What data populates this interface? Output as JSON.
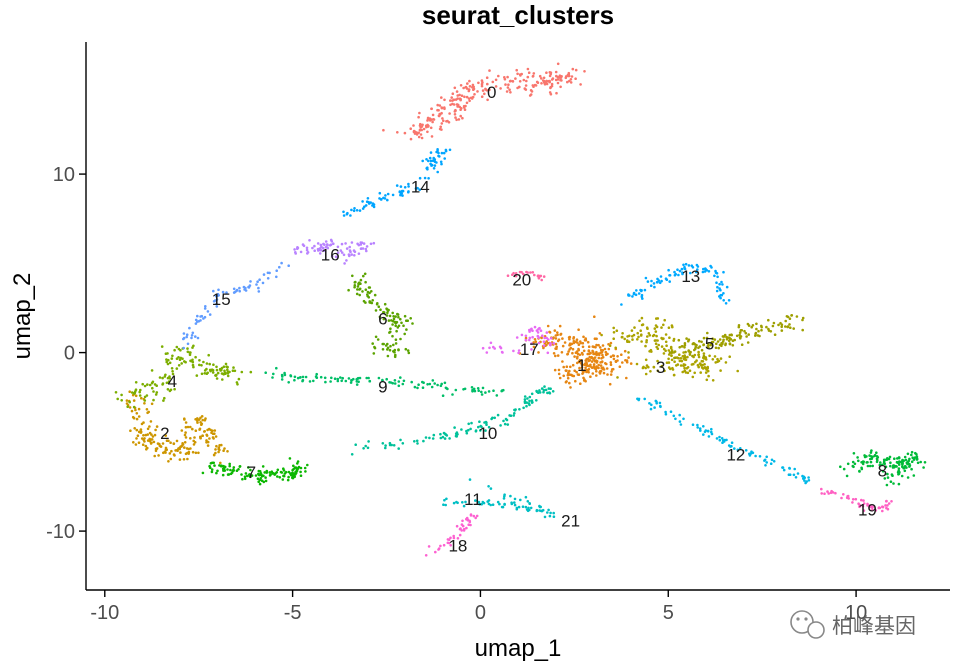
{
  "chart_data": {
    "type": "scatter",
    "title": "seurat_clusters",
    "xlabel": "umap_1",
    "ylabel": "umap_2",
    "xlim": [
      -10.5,
      12.5
    ],
    "ylim": [
      -13.3,
      17.4
    ],
    "xticks": [
      -10,
      -5,
      0,
      5,
      10
    ],
    "yticks": [
      -10,
      0,
      10
    ],
    "grid": false,
    "legend": "none",
    "clusters": [
      {
        "name": "0",
        "color": "#F8766D",
        "label_pos": [
          0.3,
          14.6
        ],
        "path": [
          [
            -1.8,
            12.2
          ],
          [
            -1.0,
            13.2
          ],
          [
            -0.5,
            14.4
          ],
          [
            0.5,
            15.1
          ],
          [
            1.8,
            15.2
          ],
          [
            2.3,
            15.6
          ]
        ],
        "spread": 0.45,
        "count": 260
      },
      {
        "name": "1",
        "color": "#E68613",
        "label_pos": [
          2.7,
          -0.7
        ],
        "path": [
          [
            1.5,
            0.4
          ],
          [
            2.5,
            0.8
          ],
          [
            3.2,
            -0.2
          ],
          [
            2.4,
            -1.3
          ],
          [
            3.8,
            -0.4
          ]
        ],
        "spread": 0.6,
        "count": 280
      },
      {
        "name": "2",
        "color": "#CD9600",
        "label_pos": [
          -8.4,
          -4.5
        ],
        "path": [
          [
            -9.2,
            -2.8
          ],
          [
            -9.0,
            -4.8
          ],
          [
            -8.0,
            -5.8
          ],
          [
            -7.5,
            -3.8
          ],
          [
            -7.0,
            -5.6
          ]
        ],
        "spread": 0.45,
        "count": 200
      },
      {
        "name": "3",
        "color": "#ABA300",
        "label_pos": [
          4.8,
          -0.8
        ],
        "path": [
          [
            3.7,
            0.8
          ],
          [
            4.6,
            1.4
          ],
          [
            5.2,
            -0.4
          ],
          [
            6.3,
            -0.7
          ],
          [
            4.2,
            -0.9
          ]
        ],
        "spread": 0.5,
        "count": 200
      },
      {
        "name": "4",
        "color": "#7CAE00",
        "label_pos": [
          -8.2,
          -1.6
        ],
        "path": [
          [
            -9.5,
            -2.6
          ],
          [
            -8.4,
            -1.8
          ],
          [
            -8.0,
            0.2
          ],
          [
            -7.2,
            -1.1
          ],
          [
            -6.6,
            -1.2
          ]
        ],
        "spread": 0.4,
        "count": 150
      },
      {
        "name": "5",
        "color": "#9E9F00",
        "label_pos": [
          6.1,
          0.5
        ],
        "path": [
          [
            5.2,
            0.1
          ],
          [
            6.2,
            0.5
          ],
          [
            7.2,
            1.3
          ],
          [
            8.6,
            1.7
          ]
        ],
        "spread": 0.35,
        "count": 140
      },
      {
        "name": "6",
        "color": "#5BA300",
        "label_pos": [
          -2.6,
          1.9
        ],
        "path": [
          [
            -3.3,
            4.3
          ],
          [
            -3.0,
            3.2
          ],
          [
            -2.5,
            2.2
          ],
          [
            -2.0,
            1.6
          ],
          [
            -2.8,
            0.4
          ],
          [
            -2.0,
            0.0
          ]
        ],
        "spread": 0.3,
        "count": 120
      },
      {
        "name": "7",
        "color": "#0CB702",
        "label_pos": [
          -6.1,
          -6.7
        ],
        "path": [
          [
            -7.2,
            -6.3
          ],
          [
            -6.2,
            -6.9
          ],
          [
            -5.2,
            -6.8
          ],
          [
            -4.8,
            -6.5
          ]
        ],
        "spread": 0.3,
        "count": 130
      },
      {
        "name": "8",
        "color": "#00BA38",
        "label_pos": [
          10.7,
          -6.6
        ],
        "path": [
          [
            9.8,
            -6.6
          ],
          [
            10.5,
            -5.9
          ],
          [
            11.2,
            -6.4
          ],
          [
            11.5,
            -5.8
          ],
          [
            10.8,
            -7.3
          ]
        ],
        "spread": 0.35,
        "count": 140
      },
      {
        "name": "9",
        "color": "#00BE67",
        "label_pos": [
          -2.6,
          -1.9
        ],
        "path": [
          [
            -5.8,
            -1.2
          ],
          [
            -3.8,
            -1.5
          ],
          [
            -2.2,
            -1.6
          ],
          [
            -0.8,
            -2.0
          ],
          [
            0.6,
            -2.2
          ]
        ],
        "spread": 0.2,
        "count": 110
      },
      {
        "name": "10",
        "color": "#00C19A",
        "label_pos": [
          0.2,
          -4.5
        ],
        "path": [
          [
            -3.5,
            -5.5
          ],
          [
            -1.8,
            -5.0
          ],
          [
            -0.2,
            -4.3
          ],
          [
            0.8,
            -3.6
          ],
          [
            1.3,
            -2.6
          ],
          [
            1.8,
            -2.0
          ]
        ],
        "spread": 0.2,
        "count": 110
      },
      {
        "name": "11",
        "color": "#00BFC4",
        "label_pos": [
          -0.2,
          -8.2
        ],
        "path": [
          [
            -1.0,
            -8.4
          ],
          [
            0.3,
            -8.4
          ],
          [
            1.4,
            -8.7
          ],
          [
            2.0,
            -9.1
          ],
          [
            -0.3,
            -7.2
          ]
        ],
        "spread": 0.18,
        "count": 70
      },
      {
        "name": "12",
        "color": "#00B8E7",
        "label_pos": [
          6.8,
          -5.7
        ],
        "path": [
          [
            4.2,
            -2.5
          ],
          [
            5.8,
            -4.2
          ],
          [
            6.8,
            -5.4
          ],
          [
            8.0,
            -6.4
          ],
          [
            8.8,
            -7.3
          ]
        ],
        "spread": 0.18,
        "count": 90
      },
      {
        "name": "13",
        "color": "#00A9FF",
        "label_pos": [
          5.6,
          4.3
        ],
        "path": [
          [
            3.8,
            2.8
          ],
          [
            4.7,
            4.0
          ],
          [
            5.5,
            4.7
          ],
          [
            6.2,
            4.7
          ],
          [
            6.5,
            2.7
          ]
        ],
        "spread": 0.2,
        "count": 90
      },
      {
        "name": "14",
        "color": "#00A5FF",
        "label_pos": [
          -1.6,
          9.3
        ],
        "path": [
          [
            -3.6,
            7.7
          ],
          [
            -2.6,
            8.7
          ],
          [
            -1.6,
            9.4
          ],
          [
            -1.2,
            10.8
          ],
          [
            -1.0,
            11.4
          ]
        ],
        "spread": 0.25,
        "count": 90
      },
      {
        "name": "15",
        "color": "#619CFF",
        "label_pos": [
          -6.9,
          3.0
        ],
        "path": [
          [
            -7.8,
            0.5
          ],
          [
            -7.5,
            1.8
          ],
          [
            -7.0,
            3.2
          ],
          [
            -6.0,
            3.8
          ],
          [
            -5.2,
            5.0
          ]
        ],
        "spread": 0.2,
        "count": 70
      },
      {
        "name": "16",
        "color": "#B983FF",
        "label_pos": [
          -4.0,
          5.5
        ],
        "path": [
          [
            -5.0,
            5.6
          ],
          [
            -4.0,
            6.0
          ],
          [
            -3.5,
            5.4
          ],
          [
            -3.0,
            6.2
          ]
        ],
        "spread": 0.3,
        "count": 80
      },
      {
        "name": "17",
        "color": "#E76BF3",
        "label_pos": [
          1.3,
          0.2
        ],
        "path": [
          [
            0.2,
            0.4
          ],
          [
            1.0,
            0.2
          ],
          [
            1.5,
            1.5
          ],
          [
            1.9,
            0.3
          ]
        ],
        "spread": 0.22,
        "count": 50
      },
      {
        "name": "18",
        "color": "#FD61D1",
        "label_pos": [
          -0.6,
          -10.8
        ],
        "path": [
          [
            -1.5,
            -11.3
          ],
          [
            -0.8,
            -10.6
          ],
          [
            -0.4,
            -9.6
          ],
          [
            -0.2,
            -9.0
          ]
        ],
        "spread": 0.15,
        "count": 40
      },
      {
        "name": "19",
        "color": "#FF61C3",
        "label_pos": [
          10.3,
          -8.8
        ],
        "path": [
          [
            9.0,
            -7.7
          ],
          [
            9.8,
            -8.2
          ],
          [
            10.5,
            -8.8
          ],
          [
            10.9,
            -8.4
          ]
        ],
        "spread": 0.2,
        "count": 50
      },
      {
        "name": "20",
        "color": "#FF67A4",
        "label_pos": [
          1.1,
          4.1
        ],
        "path": [
          [
            0.8,
            4.3
          ],
          [
            1.3,
            4.5
          ],
          [
            1.7,
            4.1
          ]
        ],
        "spread": 0.12,
        "count": 22
      },
      {
        "name": "21",
        "color": "#F8766D",
        "label_pos": [
          2.4,
          -9.4
        ],
        "path": [],
        "spread": 0,
        "count": 0
      }
    ]
  },
  "watermark": {
    "icon": "wechat-icon",
    "text": "柏峰基因"
  }
}
